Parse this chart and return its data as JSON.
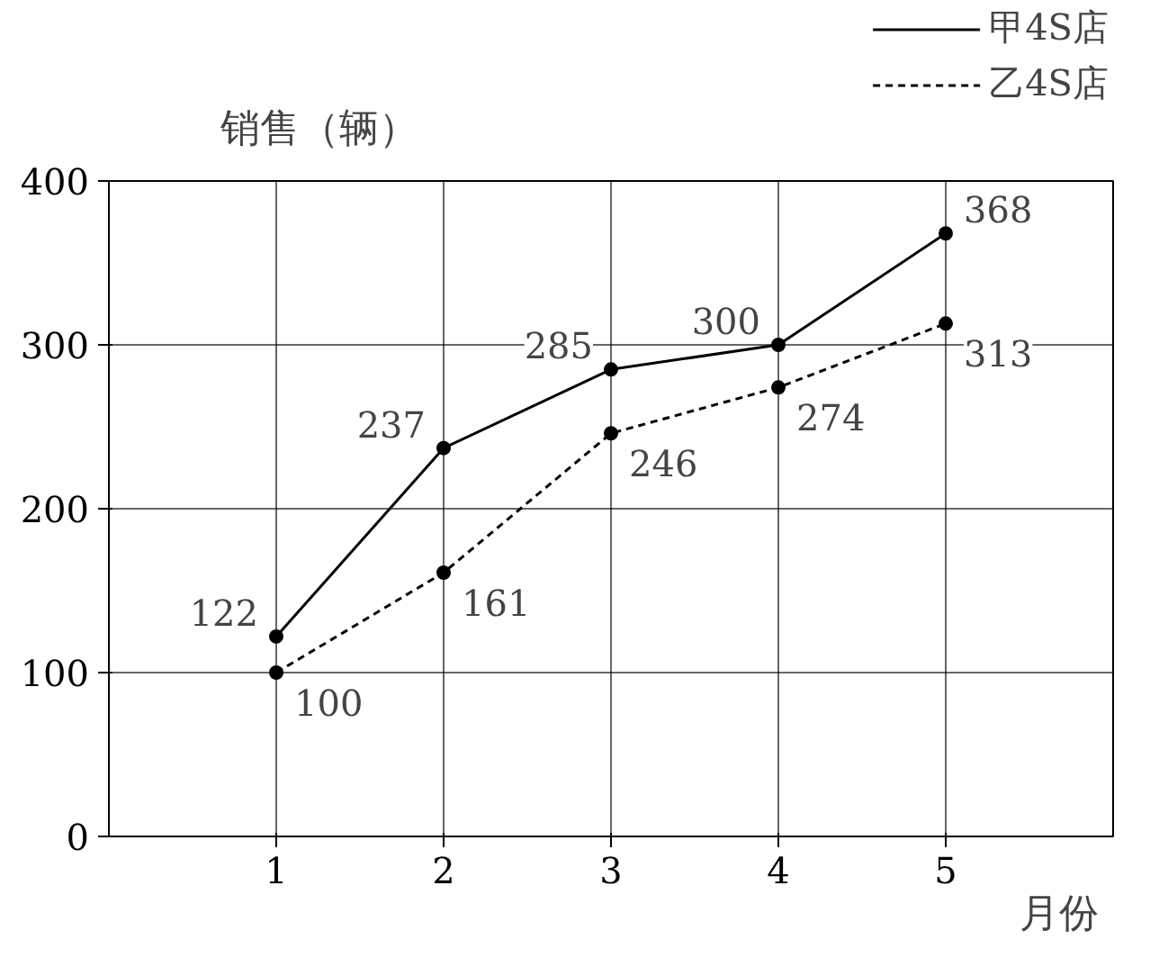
{
  "chart_data": {
    "type": "line",
    "xlabel": "月份",
    "ylabel": "销售（辆）",
    "x": [
      1,
      2,
      3,
      4,
      5
    ],
    "xlim": [
      0,
      6
    ],
    "xticks": [
      1,
      2,
      3,
      4,
      5
    ],
    "ylim": [
      0,
      400
    ],
    "yticks": [
      0,
      100,
      200,
      300,
      400
    ],
    "series": [
      {
        "name": "甲4S店",
        "color": "#000000",
        "line_style": "solid",
        "values": [
          122,
          237,
          285,
          300,
          368
        ]
      },
      {
        "name": "乙4S店",
        "color": "#000000",
        "line_style": "dashed",
        "values": [
          100,
          161,
          246,
          274,
          313
        ]
      }
    ],
    "marker": "circle",
    "data_labels": true,
    "grid": true,
    "legend": "top right"
  }
}
